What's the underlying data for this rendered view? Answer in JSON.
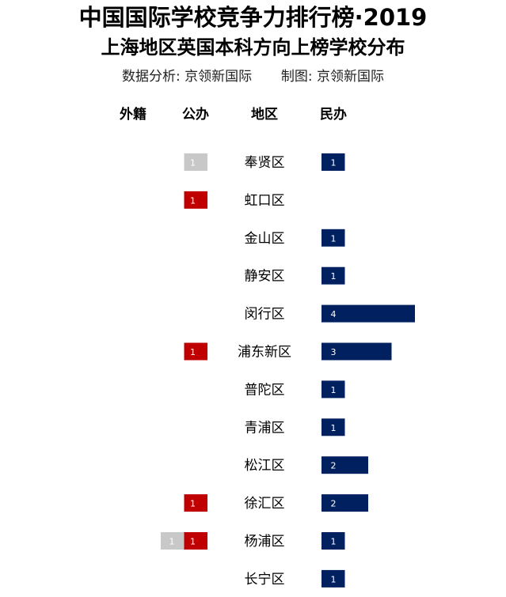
{
  "title": "中国国际学校竞争力排行榜·2019",
  "subtitle": "上海地区英国本科方向上榜学校分布",
  "credits": {
    "analysis_label": "数据分析:",
    "analysis_value": "京领新国际",
    "chart_label": "制图:",
    "chart_value": "京领新国际"
  },
  "headers": {
    "foreign": "外籍",
    "public": "公办",
    "district": "地区",
    "private": "民办"
  },
  "colors": {
    "foreign": "#c8c8c8",
    "public": "#c00000",
    "private": "#002060"
  },
  "chart_data": {
    "type": "bar",
    "title": "中国国际学校竞争力排行榜·2019",
    "subtitle": "上海地区英国本科方向上榜学校分布",
    "categories": [
      "奉贤区",
      "虹口区",
      "金山区",
      "静安区",
      "闵行区",
      "浦东新区",
      "普陀区",
      "青浦区",
      "松江区",
      "徐汇区",
      "杨浦区",
      "长宁区"
    ],
    "series": [
      {
        "name": "外籍",
        "values": [
          0,
          0,
          0,
          0,
          0,
          0,
          0,
          0,
          0,
          0,
          1,
          0
        ]
      },
      {
        "name": "公办",
        "values": [
          1,
          1,
          0,
          0,
          0,
          1,
          0,
          0,
          0,
          1,
          1,
          0
        ]
      },
      {
        "name": "民办",
        "values": [
          1,
          0,
          1,
          1,
          4,
          3,
          1,
          1,
          2,
          2,
          1,
          1
        ]
      }
    ],
    "special_public_colors": [
      "#c8c8c8",
      "#c00000",
      "#c00000",
      "#c00000",
      "#c00000",
      "#c00000",
      "#c00000",
      "#c00000",
      "#c00000",
      "#c00000",
      "#c00000",
      "#c00000"
    ]
  }
}
